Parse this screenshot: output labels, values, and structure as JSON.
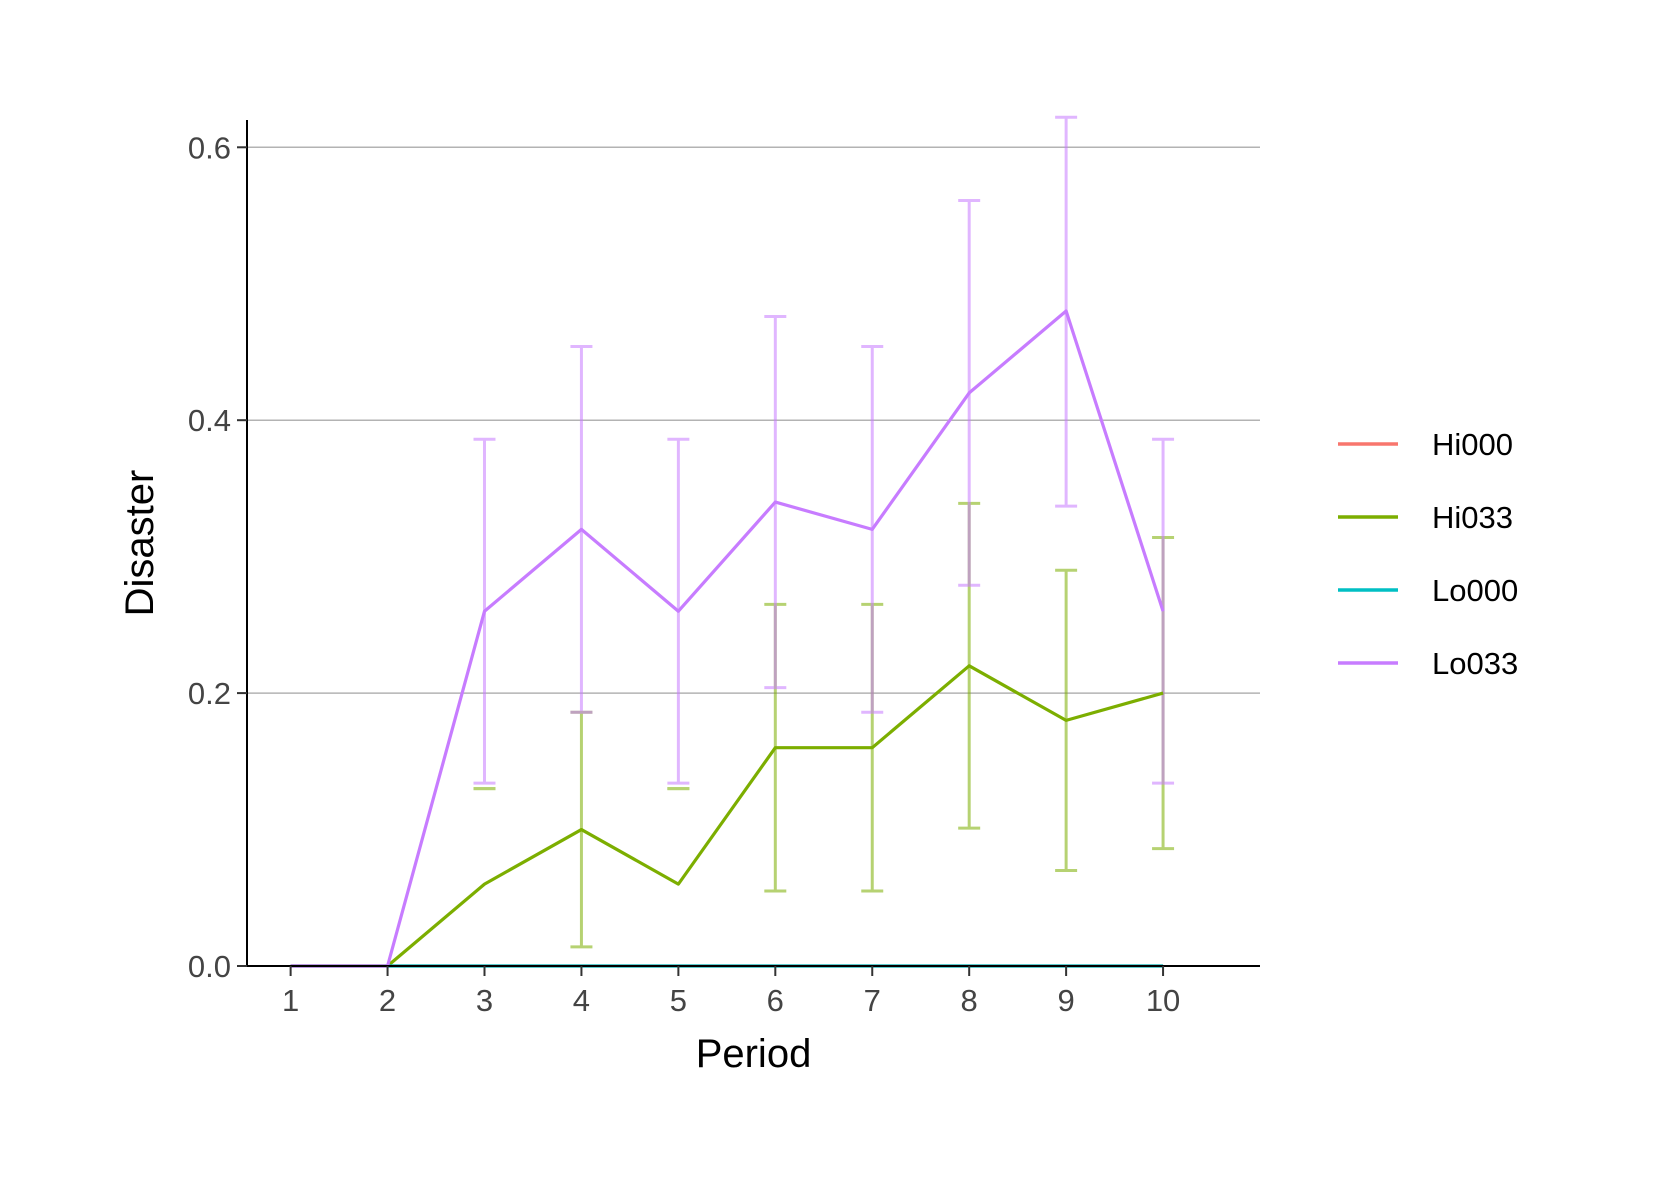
{
  "chart_data": {
    "type": "line",
    "title": "",
    "xlabel": "Period",
    "ylabel": "Disaster",
    "x": [
      1,
      2,
      3,
      4,
      5,
      6,
      7,
      8,
      9,
      10
    ],
    "x_ticks": [
      "1",
      "2",
      "3",
      "4",
      "5",
      "6",
      "7",
      "8",
      "9",
      "10"
    ],
    "xlim": [
      0.55,
      11.0
    ],
    "ylim": [
      0,
      0.62
    ],
    "y_ticks": [
      0.0,
      0.2,
      0.4,
      0.6
    ],
    "y_tick_labels": [
      "0.0",
      "0.2",
      "0.4",
      "0.6"
    ],
    "grid": "horizontal major",
    "legend_position": "right",
    "series": [
      {
        "name": "Hi000",
        "color": "#F8766D",
        "values": [
          0,
          0,
          0,
          0,
          0,
          0,
          0,
          0,
          0,
          0
        ],
        "error_low": null,
        "error_high": null
      },
      {
        "name": "Hi033",
        "color": "#7CAE00",
        "values": [
          0,
          0,
          0.06,
          0.1,
          0.06,
          0.16,
          0.16,
          0.22,
          0.18,
          0.2
        ],
        "error_low": [
          null,
          null,
          0.13,
          0.014,
          0.13,
          0.055,
          0.055,
          0.101,
          0.07,
          0.086
        ],
        "error_high": [
          null,
          null,
          0.13,
          0.186,
          0.13,
          0.265,
          0.265,
          0.339,
          0.29,
          0.314
        ]
      },
      {
        "name": "Lo000",
        "color": "#00BFC4",
        "values": [
          0,
          0,
          0,
          0,
          0,
          0,
          0,
          0,
          0,
          0
        ],
        "error_low": null,
        "error_high": null
      },
      {
        "name": "Lo033",
        "color": "#C77CFF",
        "values": [
          0,
          0,
          0.26,
          0.32,
          0.26,
          0.34,
          0.32,
          0.42,
          0.48,
          0.26
        ],
        "error_low": [
          null,
          null,
          0.134,
          0.186,
          0.134,
          0.204,
          0.186,
          0.279,
          0.337,
          0.134
        ],
        "error_high": [
          null,
          null,
          0.386,
          0.454,
          0.386,
          0.476,
          0.454,
          0.561,
          0.622,
          0.386
        ]
      }
    ]
  }
}
